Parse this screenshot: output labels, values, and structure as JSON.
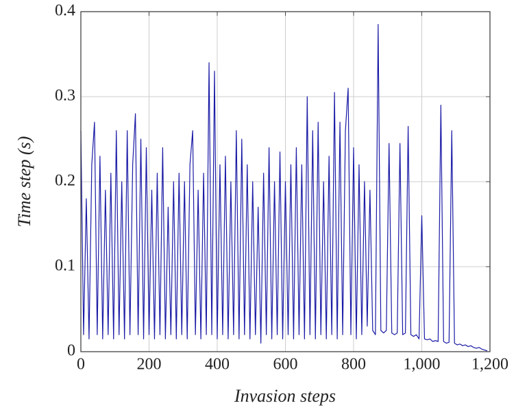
{
  "chart_data": {
    "type": "line",
    "xlabel": "Invasion steps",
    "ylabel": "Time step (s)",
    "x": [
      0,
      8,
      16,
      24,
      32,
      40,
      48,
      56,
      64,
      72,
      80,
      88,
      96,
      104,
      112,
      120,
      128,
      136,
      144,
      152,
      160,
      168,
      176,
      184,
      192,
      200,
      208,
      216,
      224,
      232,
      240,
      248,
      256,
      264,
      272,
      280,
      288,
      296,
      304,
      312,
      320,
      328,
      336,
      344,
      352,
      360,
      368,
      376,
      384,
      392,
      400,
      408,
      416,
      424,
      432,
      440,
      448,
      456,
      464,
      472,
      480,
      488,
      496,
      504,
      512,
      520,
      528,
      536,
      544,
      552,
      560,
      568,
      576,
      584,
      592,
      600,
      608,
      616,
      624,
      632,
      640,
      648,
      656,
      664,
      672,
      680,
      688,
      696,
      704,
      712,
      720,
      728,
      736,
      744,
      752,
      760,
      768,
      776,
      784,
      792,
      800,
      808,
      816,
      824,
      832,
      840,
      848,
      856,
      864,
      872,
      880,
      888,
      896,
      904,
      912,
      920,
      928,
      936,
      944,
      952,
      960,
      968,
      976,
      984,
      992,
      1000,
      1008,
      1016,
      1024,
      1032,
      1040,
      1048,
      1056,
      1064,
      1072,
      1080,
      1088,
      1096,
      1104,
      1112,
      1120,
      1128,
      1136,
      1144,
      1152,
      1160,
      1168,
      1176,
      1184,
      1192
    ],
    "series": [
      {
        "color": "#1a1aa6",
        "values": [
          0.26,
          0.02,
          0.18,
          0.015,
          0.22,
          0.27,
          0.02,
          0.23,
          0.015,
          0.19,
          0.02,
          0.21,
          0.015,
          0.26,
          0.02,
          0.2,
          0.015,
          0.26,
          0.02,
          0.22,
          0.28,
          0.02,
          0.25,
          0.015,
          0.24,
          0.02,
          0.19,
          0.015,
          0.21,
          0.02,
          0.24,
          0.015,
          0.17,
          0.02,
          0.2,
          0.015,
          0.21,
          0.02,
          0.2,
          0.015,
          0.22,
          0.26,
          0.02,
          0.19,
          0.015,
          0.21,
          0.02,
          0.34,
          0.02,
          0.33,
          0.015,
          0.22,
          0.02,
          0.23,
          0.015,
          0.2,
          0.02,
          0.26,
          0.015,
          0.25,
          0.02,
          0.22,
          0.015,
          0.2,
          0.02,
          0.17,
          0.01,
          0.21,
          0.02,
          0.24,
          0.015,
          0.2,
          0.02,
          0.235,
          0.015,
          0.2,
          0.02,
          0.22,
          0.015,
          0.24,
          0.02,
          0.22,
          0.015,
          0.3,
          0.02,
          0.26,
          0.015,
          0.27,
          0.02,
          0.2,
          0.015,
          0.23,
          0.02,
          0.305,
          0.015,
          0.27,
          0.02,
          0.26,
          0.31,
          0.02,
          0.24,
          0.015,
          0.22,
          0.02,
          0.2,
          0.03,
          0.19,
          0.025,
          0.02,
          0.385,
          0.025,
          0.022,
          0.025,
          0.245,
          0.022,
          0.02,
          0.022,
          0.245,
          0.02,
          0.022,
          0.265,
          0.02,
          0.018,
          0.02,
          0.015,
          0.16,
          0.015,
          0.014,
          0.015,
          0.012,
          0.013,
          0.012,
          0.29,
          0.012,
          0.01,
          0.011,
          0.26,
          0.01,
          0.008,
          0.009,
          0.007,
          0.008,
          0.006,
          0.007,
          0.005,
          0.004,
          0.005,
          0.003,
          0.002,
          0.001
        ]
      }
    ],
    "xlim": [
      0,
      1200
    ],
    "ylim": [
      0,
      0.4
    ],
    "xticks": [
      0,
      200,
      400,
      600,
      800,
      {
        "value": 1000,
        "label": "1,000"
      },
      {
        "value": 1200,
        "label": "1,200"
      }
    ],
    "yticks": [
      0,
      0.1,
      0.2,
      0.3,
      0.4
    ],
    "grid": true
  }
}
